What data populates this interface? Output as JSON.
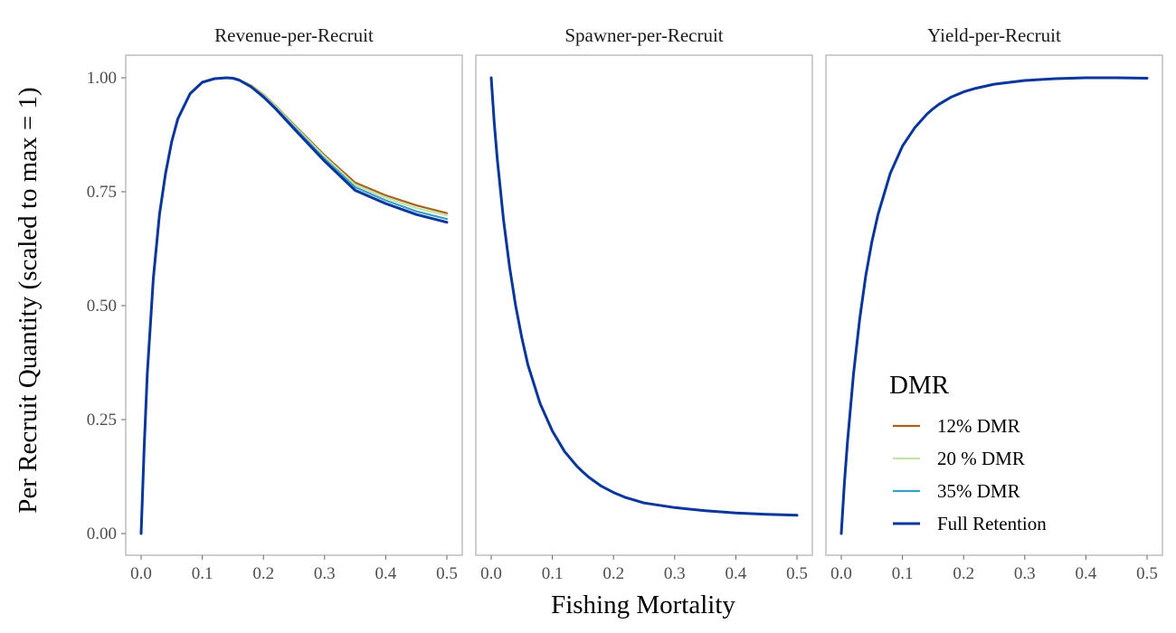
{
  "chart_data": {
    "type": "line",
    "xlabel": "Fishing Mortality",
    "ylabel": "Per Recruit Quantity (scaled to max = 1)",
    "xlim": [
      0,
      0.5
    ],
    "ylim": [
      0,
      1.0
    ],
    "x_ticks": [
      "0.0",
      "0.1",
      "0.2",
      "0.3",
      "0.4",
      "0.5"
    ],
    "y_ticks": [
      "0.00",
      "0.25",
      "0.50",
      "0.75",
      "1.00"
    ],
    "grid": false,
    "legend": {
      "title": "DMR",
      "placement": "inside-bottom-right of Yield-per-Recruit panel",
      "entries": [
        {
          "label": "12% DMR",
          "color": "#a6611a"
        },
        {
          "label": "20 % DMR",
          "color": "#c2e3a6"
        },
        {
          "label": "35% DMR",
          "color": "#3a9ec7"
        },
        {
          "label": "Full Retention",
          "color": "#08369a"
        }
      ]
    },
    "x": [
      0.0,
      0.005,
      0.01,
      0.02,
      0.03,
      0.04,
      0.05,
      0.06,
      0.08,
      0.1,
      0.12,
      0.14,
      0.15,
      0.16,
      0.18,
      0.2,
      0.22,
      0.25,
      0.3,
      0.35,
      0.4,
      0.45,
      0.5
    ],
    "panels": [
      {
        "title": "Revenue-per-Recruit",
        "series": [
          {
            "name": "12% DMR",
            "values": [
              0.0,
              0.19,
              0.35,
              0.56,
              0.7,
              0.79,
              0.86,
              0.91,
              0.965,
              0.99,
              0.998,
              1.0,
              0.999,
              0.996,
              0.983,
              0.963,
              0.938,
              0.897,
              0.83,
              0.77,
              0.742,
              0.72,
              0.703
            ]
          },
          {
            "name": "20 % DMR",
            "values": [
              0.0,
              0.19,
              0.35,
              0.56,
              0.7,
              0.79,
              0.86,
              0.91,
              0.965,
              0.99,
              0.998,
              1.0,
              0.999,
              0.996,
              0.982,
              0.962,
              0.937,
              0.895,
              0.827,
              0.765,
              0.737,
              0.714,
              0.698
            ]
          },
          {
            "name": "35% DMR",
            "values": [
              0.0,
              0.19,
              0.35,
              0.56,
              0.7,
              0.79,
              0.86,
              0.91,
              0.965,
              0.99,
              0.998,
              1.0,
              0.999,
              0.995,
              0.981,
              0.96,
              0.934,
              0.892,
              0.822,
              0.76,
              0.731,
              0.707,
              0.69
            ]
          },
          {
            "name": "Full Retention",
            "values": [
              0.0,
              0.19,
              0.35,
              0.56,
              0.7,
              0.79,
              0.86,
              0.91,
              0.965,
              0.99,
              0.998,
              1.0,
              0.999,
              0.995,
              0.98,
              0.958,
              0.932,
              0.888,
              0.817,
              0.753,
              0.724,
              0.7,
              0.683
            ]
          }
        ]
      },
      {
        "title": "Spawner-per-Recruit",
        "series": [
          {
            "name": "12% DMR",
            "values": [
              1.0,
              0.9,
              0.82,
              0.69,
              0.585,
              0.5,
              0.43,
              0.37,
              0.285,
              0.225,
              0.18,
              0.148,
              0.135,
              0.123,
              0.104,
              0.09,
              0.079,
              0.067,
              0.057,
              0.05,
              0.045,
              0.042,
              0.04
            ]
          },
          {
            "name": "20 % DMR",
            "values": [
              1.0,
              0.9,
              0.82,
              0.69,
              0.585,
              0.5,
              0.43,
              0.37,
              0.285,
              0.225,
              0.18,
              0.148,
              0.135,
              0.123,
              0.104,
              0.09,
              0.079,
              0.067,
              0.057,
              0.05,
              0.045,
              0.042,
              0.04
            ]
          },
          {
            "name": "35% DMR",
            "values": [
              1.0,
              0.9,
              0.82,
              0.69,
              0.585,
              0.5,
              0.43,
              0.37,
              0.285,
              0.225,
              0.18,
              0.148,
              0.135,
              0.123,
              0.104,
              0.09,
              0.079,
              0.067,
              0.057,
              0.05,
              0.045,
              0.042,
              0.04
            ]
          },
          {
            "name": "Full Retention",
            "values": [
              1.0,
              0.9,
              0.82,
              0.69,
              0.585,
              0.5,
              0.43,
              0.37,
              0.285,
              0.225,
              0.18,
              0.148,
              0.135,
              0.123,
              0.104,
              0.09,
              0.079,
              0.067,
              0.057,
              0.05,
              0.045,
              0.042,
              0.04
            ]
          }
        ]
      },
      {
        "title": "Yield-per-Recruit",
        "series": [
          {
            "name": "12% DMR",
            "values": [
              0.0,
              0.11,
              0.2,
              0.35,
              0.47,
              0.565,
              0.64,
              0.7,
              0.79,
              0.85,
              0.89,
              0.92,
              0.932,
              0.942,
              0.958,
              0.969,
              0.977,
              0.986,
              0.994,
              0.998,
              1.0,
              1.0,
              0.999
            ]
          },
          {
            "name": "20 % DMR",
            "values": [
              0.0,
              0.11,
              0.2,
              0.35,
              0.47,
              0.565,
              0.64,
              0.7,
              0.79,
              0.85,
              0.89,
              0.92,
              0.932,
              0.942,
              0.958,
              0.969,
              0.977,
              0.986,
              0.994,
              0.998,
              1.0,
              1.0,
              0.999
            ]
          },
          {
            "name": "35% DMR",
            "values": [
              0.0,
              0.11,
              0.2,
              0.35,
              0.47,
              0.565,
              0.64,
              0.7,
              0.79,
              0.85,
              0.89,
              0.92,
              0.932,
              0.942,
              0.958,
              0.969,
              0.977,
              0.986,
              0.994,
              0.998,
              1.0,
              1.0,
              0.999
            ]
          },
          {
            "name": "Full Retention",
            "values": [
              0.0,
              0.11,
              0.2,
              0.35,
              0.47,
              0.565,
              0.64,
              0.7,
              0.79,
              0.85,
              0.89,
              0.92,
              0.932,
              0.942,
              0.958,
              0.969,
              0.977,
              0.986,
              0.994,
              0.998,
              1.0,
              1.0,
              0.999
            ]
          }
        ]
      }
    ]
  }
}
